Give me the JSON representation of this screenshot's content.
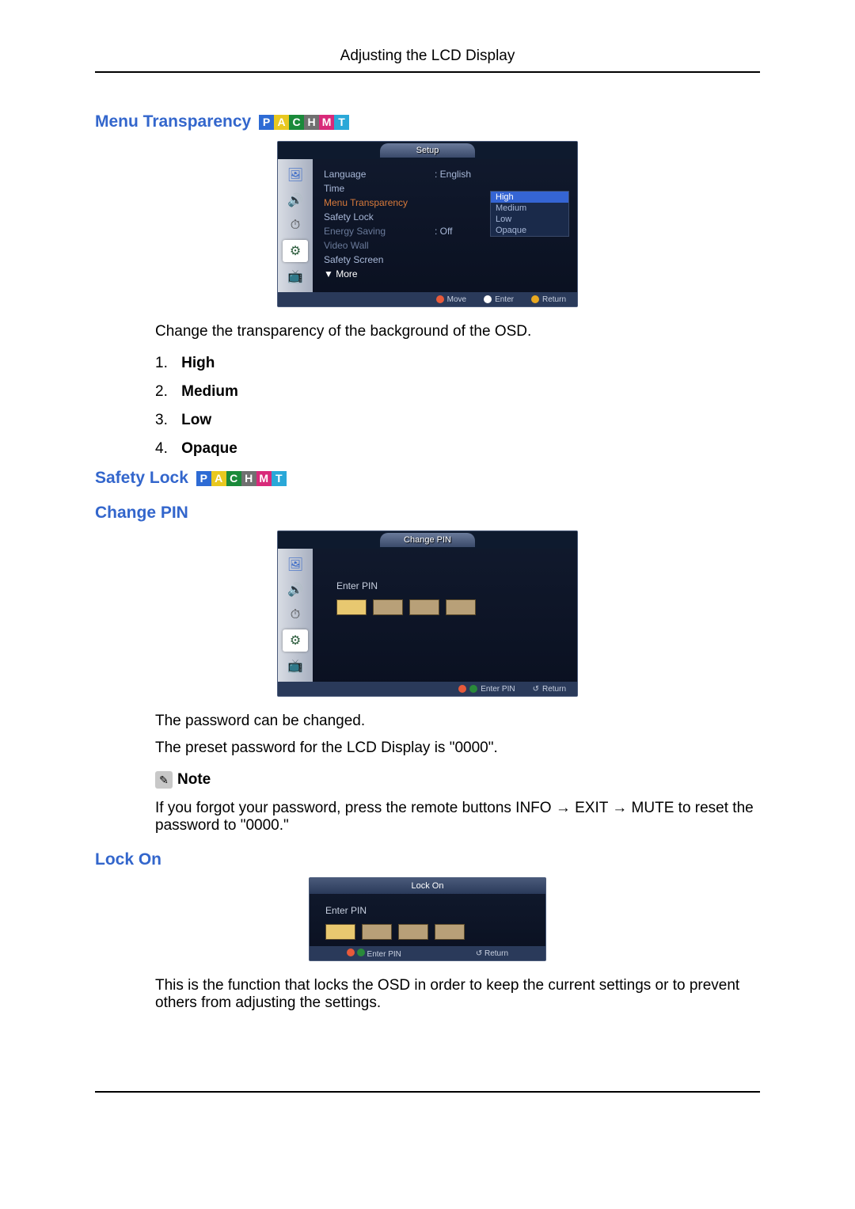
{
  "header": "Adjusting the LCD Display",
  "badges": {
    "letters": [
      "P",
      "A",
      "C",
      "H",
      "M",
      "T"
    ],
    "colors": [
      "#2e6bd4",
      "#e8c820",
      "#1a8a3a",
      "#707070",
      "#d82a7a",
      "#2aa8d8"
    ]
  },
  "section1": {
    "title": "Menu Transparency",
    "osd": {
      "tab_title": "Setup",
      "rows": [
        {
          "label": "Language",
          "value": ": English",
          "color": "#a8b8d8"
        },
        {
          "label": "Time",
          "value": "",
          "color": "#a8b8d8"
        },
        {
          "label": "Menu Transparency",
          "value": ": High",
          "color": "#d87a3a",
          "highlight": true
        },
        {
          "label": "Safety Lock",
          "value": "",
          "color": "#a8b8d8"
        },
        {
          "label": "Energy Saving",
          "value": ": Off",
          "color": "#6a7a9a"
        },
        {
          "label": "Video Wall",
          "value": "",
          "color": "#6a7a9a"
        },
        {
          "label": "Safety Screen",
          "value": "",
          "color": "#a8b8d8"
        },
        {
          "label": "▼ More",
          "value": "",
          "color": "#ffffff"
        }
      ],
      "popup": [
        "High",
        "Medium",
        "Low",
        "Opaque"
      ],
      "footer": [
        {
          "icon_color": "#e85a3a",
          "label": "Move"
        },
        {
          "icon_color": "#ffffff",
          "label": "Enter"
        },
        {
          "icon_color": "#e8a820",
          "label": "Return"
        }
      ]
    },
    "desc": "Change the transparency of the background of the OSD.",
    "options": [
      "High",
      "Medium",
      "Low",
      "Opaque"
    ]
  },
  "section2": {
    "title": "Safety Lock",
    "sub1": {
      "title": "Change PIN",
      "osd_title": "Change PIN",
      "enter_pin": "Enter PIN",
      "footer_enter": "Enter PIN",
      "footer_return": "Return",
      "desc1": "The password can be changed.",
      "desc2": "The preset password for the LCD Display is \"0000\".",
      "note_label": "Note",
      "note_body": "If you forgot your password, press the remote buttons INFO  → EXIT → MUTE to reset the password to \"0000.\""
    },
    "sub2": {
      "title": "Lock On",
      "osd_title": "Lock On",
      "enter_pin": "Enter PIN",
      "footer_enter": "Enter PIN",
      "footer_return": "Return",
      "desc": "This is the function that locks the OSD in order to keep the current settings or to prevent others from adjusting the settings."
    }
  },
  "sidebar_icons": [
    {
      "glyph": "🖼",
      "color": "#3a6ac8"
    },
    {
      "glyph": "🔊",
      "color": "#8a6a3a"
    },
    {
      "glyph": "⏱",
      "color": "#3a3a3a"
    },
    {
      "glyph": "⚙",
      "color": "#2a5a3a"
    },
    {
      "glyph": "📺",
      "color": "#3a6a9a"
    }
  ]
}
